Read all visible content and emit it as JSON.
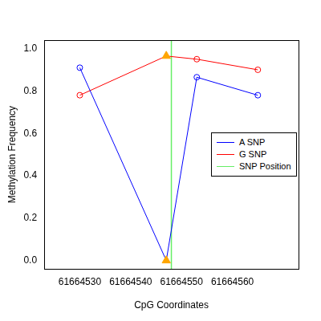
{
  "chart_data": {
    "type": "line",
    "x_label": "CpG Coordinates",
    "y_label": "Methylation Frequency",
    "x": [
      61664530,
      61664547,
      61664553,
      61664565
    ],
    "xlim": [
      61664523,
      61664573
    ],
    "xticks": [
      61664530,
      61664540,
      61664550,
      61664560
    ],
    "ylim": [
      -0.04,
      1.04
    ],
    "yticks": [
      {
        "value": 0,
        "label": "0.0"
      },
      {
        "value": 0.2,
        "label": "0.2"
      },
      {
        "value": 0.4,
        "label": "0.4"
      },
      {
        "value": 0.6,
        "label": "0.6"
      },
      {
        "value": 0.8,
        "label": "0.8"
      },
      {
        "value": 1,
        "label": "1.0"
      }
    ],
    "grid": false,
    "legend": "right",
    "series": [
      {
        "name": "A SNP",
        "color": "#0000ff",
        "values": [
          0.91,
          0.0,
          0.865,
          0.78
        ],
        "markers": [
          "circle",
          "triangle",
          "circle",
          "circle"
        ],
        "colors": [
          "#0000ff",
          "#ffa500",
          "#0000ff",
          "#0000ff"
        ]
      },
      {
        "name": "G SNP",
        "color": "#ff0000",
        "values": [
          0.78,
          0.965,
          0.95,
          0.9
        ],
        "markers": [
          "circle",
          "triangle",
          "circle",
          "circle"
        ],
        "colors": [
          "#ff0000",
          "#ffa500",
          "#ff0000",
          "#ff0000"
        ]
      },
      {
        "name": "SNP Position",
        "type": "vline",
        "color": "#66ee66",
        "x": 61664548
      }
    ]
  }
}
